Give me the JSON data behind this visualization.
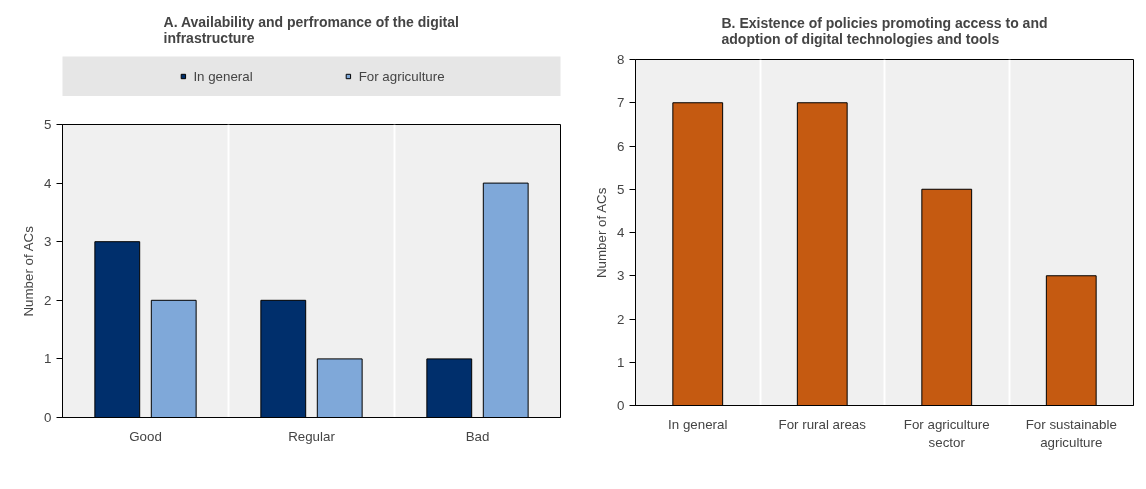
{
  "chart_data": [
    {
      "type": "bar",
      "title": "A. Availability and perfromance of the digital infrastructure",
      "ylabel": "Number of ACs",
      "categories": [
        "Good",
        "Regular",
        "Bad"
      ],
      "series": [
        {
          "name": "In general",
          "color": "#002f6c",
          "values": [
            3,
            2,
            1
          ]
        },
        {
          "name": "For agriculture",
          "color": "#7fa8d9",
          "values": [
            2,
            1,
            4
          ]
        }
      ],
      "ylim": [
        0,
        5
      ],
      "yticks": [
        0,
        1,
        2,
        3,
        4,
        5
      ],
      "grid": "x",
      "legend": "top"
    },
    {
      "type": "bar",
      "title": "B. Existence of policies promoting access to and adoption of digital technologies and tools",
      "ylabel": "Number of ACs",
      "categories": [
        "In general",
        "For rural areas",
        "For agriculture sector",
        "For sustainable agriculture"
      ],
      "series": [
        {
          "color": "#c55a11",
          "values": [
            7,
            7,
            5,
            3
          ]
        }
      ],
      "ylim": [
        0,
        8
      ],
      "yticks": [
        0,
        1,
        2,
        3,
        4,
        5,
        6,
        7,
        8
      ],
      "grid": "x"
    }
  ]
}
